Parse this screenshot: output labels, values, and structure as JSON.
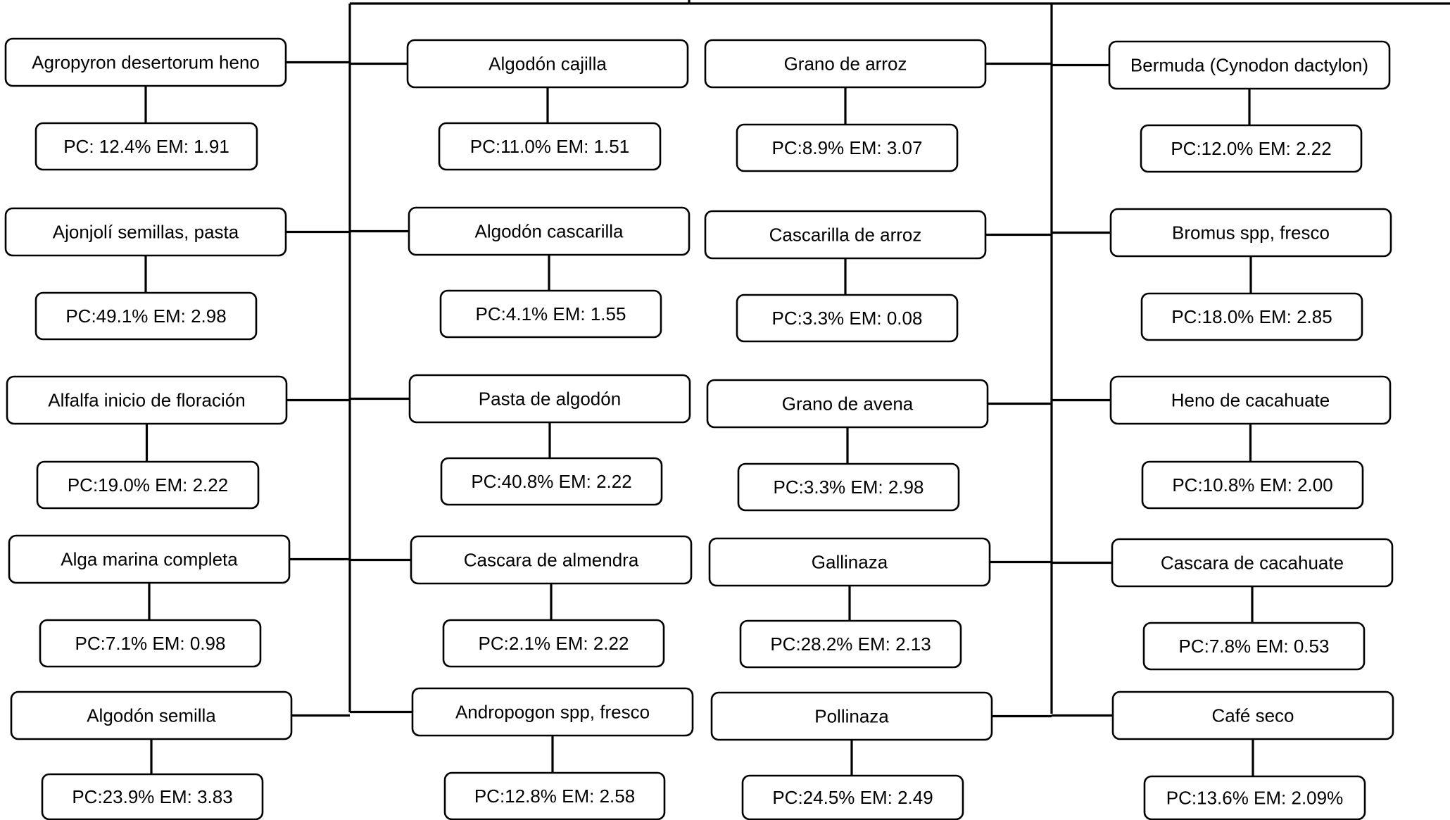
{
  "columns": [
    {
      "items": [
        {
          "name": "Agropyron desertorum heno",
          "stats": "PC: 12.4% EM: 1.91"
        },
        {
          "name": "Ajonjolí semillas, pasta",
          "stats": "PC:49.1%  EM: 2.98"
        },
        {
          "name": "Alfalfa inicio de floración",
          "stats": "PC:19.0%  EM: 2.22"
        },
        {
          "name": "Alga marina completa",
          "stats": "PC:7.1%  EM: 0.98"
        },
        {
          "name": "Algodón semilla",
          "stats": "PC:23.9%  EM: 3.83"
        }
      ]
    },
    {
      "items": [
        {
          "name": "Algodón cajilla",
          "stats": "PC:11.0%  EM: 1.51"
        },
        {
          "name": "Algodón cascarilla",
          "stats": "PC:4.1%  EM: 1.55"
        },
        {
          "name": "Pasta de algodón",
          "stats": "PC:40.8%  EM: 2.22"
        },
        {
          "name": "Cascara de almendra",
          "stats": "PC:2.1%  EM: 2.22"
        },
        {
          "name": "Andropogon spp, fresco",
          "stats": "PC:12.8% EM: 2.58"
        }
      ]
    },
    {
      "items": [
        {
          "name": "Grano de arroz",
          "stats": "PC:8.9%  EM: 3.07"
        },
        {
          "name": "Cascarilla de arroz",
          "stats": "PC:3.3%  EM: 0.08"
        },
        {
          "name": "Grano de avena",
          "stats": "PC:3.3%  EM: 2.98"
        },
        {
          "name": "Gallinaza",
          "stats": "PC:28.2%  EM: 2.13"
        },
        {
          "name": "Pollinaza",
          "stats": "PC:24.5%  EM: 2.49"
        }
      ]
    },
    {
      "items": [
        {
          "name": "Bermuda (Cynodon dactylon)",
          "stats": "PC:12.0%  EM: 2.22"
        },
        {
          "name": "Bromus spp, fresco",
          "stats": "PC:18.0%  EM: 2.85"
        },
        {
          "name": "Heno de cacahuate",
          "stats": "PC:10.8%  EM: 2.00"
        },
        {
          "name": "Cascara de cacahuate",
          "stats": "PC:7.8%  EM: 0.53"
        },
        {
          "name": "Café seco",
          "stats": "PC:13.6%  EM: 2.09%"
        }
      ]
    }
  ]
}
